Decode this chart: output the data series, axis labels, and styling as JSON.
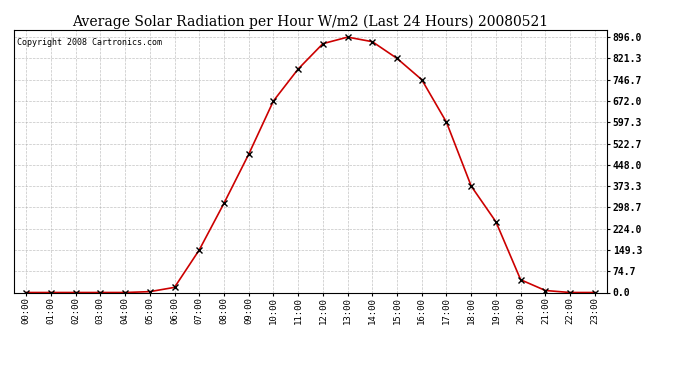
{
  "title": "Average Solar Radiation per Hour W/m2 (Last 24 Hours) 20080521",
  "copyright": "Copyright 2008 Cartronics.com",
  "hours": [
    "00:00",
    "01:00",
    "02:00",
    "03:00",
    "04:00",
    "05:00",
    "06:00",
    "07:00",
    "08:00",
    "09:00",
    "10:00",
    "11:00",
    "12:00",
    "13:00",
    "14:00",
    "15:00",
    "16:00",
    "17:00",
    "18:00",
    "19:00",
    "20:00",
    "21:00",
    "22:00",
    "23:00"
  ],
  "values": [
    0.0,
    0.0,
    0.0,
    0.0,
    0.0,
    3.0,
    18.0,
    149.3,
    313.0,
    485.0,
    672.0,
    784.0,
    873.0,
    896.0,
    880.0,
    821.3,
    746.7,
    597.3,
    373.3,
    248.0,
    44.7,
    7.0,
    0.0,
    0.0
  ],
  "line_color": "#cc0000",
  "marker": "x",
  "marker_color": "#000000",
  "background_color": "#ffffff",
  "grid_color": "#aaaaaa",
  "yticks": [
    0.0,
    74.7,
    149.3,
    224.0,
    298.7,
    373.3,
    448.0,
    522.7,
    597.3,
    672.0,
    746.7,
    821.3,
    896.0
  ],
  "ylim": [
    0,
    921.0
  ],
  "title_fontsize": 10,
  "copyright_fontsize": 6,
  "tick_fontsize": 6.5,
  "ytick_fontsize": 7
}
